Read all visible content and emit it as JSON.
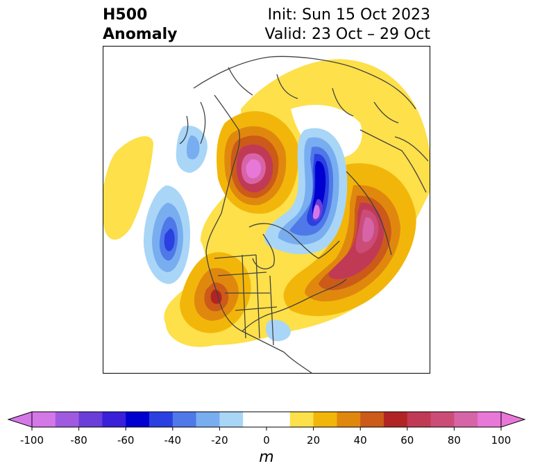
{
  "title": {
    "left_line1": "H500",
    "left_line2": "Anomaly",
    "right_line1": "Init: Sun 15 Oct 2023",
    "right_line2": "Valid: 23 Oct – 29 Oct"
  },
  "colorbar": {
    "unit": "m",
    "ticks": [
      "-100",
      "-80",
      "-60",
      "-40",
      "-20",
      "0",
      "20",
      "40",
      "60",
      "80",
      "100"
    ],
    "range": [
      -100,
      100
    ],
    "step": 10,
    "colors": [
      "#d478e8",
      "#a05ae0",
      "#6a3ed8",
      "#3a20d8",
      "#0000d0",
      "#2a40e0",
      "#4f78e8",
      "#78aef0",
      "#a9d6f7",
      "#ffffff",
      "#ffffff",
      "#fde04a",
      "#f2b60a",
      "#e0880e",
      "#cc5a18",
      "#b22424",
      "#c03a56",
      "#cc4c78",
      "#d864a8",
      "#e878d8"
    ],
    "extend": "both"
  },
  "map": {
    "projection": "polar-stereographic",
    "region": "North America / North Atlantic / Arctic",
    "features": [
      "coastlines",
      "country borders",
      "US state borders"
    ]
  }
}
